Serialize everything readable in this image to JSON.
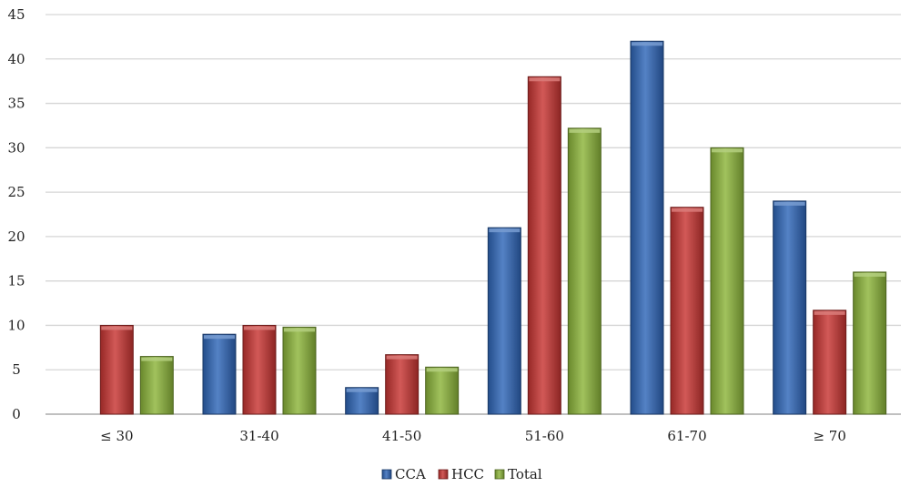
{
  "chart_data": {
    "type": "bar",
    "categories": [
      "≤ 30",
      "31-40",
      "41-50",
      "51-60",
      "61-70",
      "≥ 70"
    ],
    "series": [
      {
        "name": "CCA",
        "color": "#2f66b8",
        "values": [
          0,
          9,
          3,
          21,
          42,
          24
        ]
      },
      {
        "name": "HCC",
        "color": "#c83532",
        "values": [
          10,
          10,
          6.7,
          38,
          23.3,
          11.7
        ]
      },
      {
        "name": "Total",
        "color": "#8cb53a",
        "values": [
          6.5,
          9.8,
          5.3,
          32.2,
          30,
          16
        ]
      }
    ],
    "ylim": [
      0,
      45
    ],
    "yticks": [
      0,
      5,
      10,
      15,
      20,
      25,
      30,
      35,
      40,
      45
    ],
    "grid": true,
    "legend": "bottom-center"
  }
}
